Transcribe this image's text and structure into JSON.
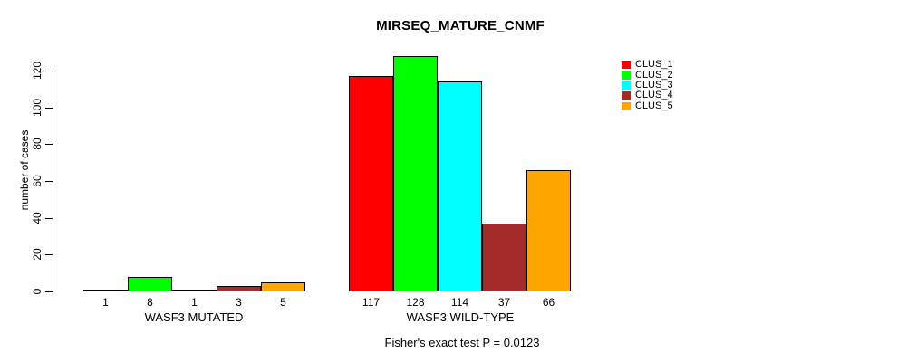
{
  "chart_data": {
    "type": "bar",
    "title": "MIRSEQ_MATURE_CNMF",
    "ylabel": "number of cases",
    "xlabel": "",
    "ylim": [
      0,
      128
    ],
    "yticks": [
      0,
      20,
      40,
      60,
      80,
      100,
      120
    ],
    "grid": false,
    "legend_position": "right",
    "bar_value_labels": true,
    "series": [
      {
        "name": "CLUS_1",
        "color": "#FF0000"
      },
      {
        "name": "CLUS_2",
        "color": "#00FF00"
      },
      {
        "name": "CLUS_3",
        "color": "#00FFFF"
      },
      {
        "name": "CLUS_4",
        "color": "#A52A2A"
      },
      {
        "name": "CLUS_5",
        "color": "#FFA500"
      }
    ],
    "groups": [
      {
        "label": "WASF3 MUTATED",
        "values": [
          1,
          8,
          1,
          3,
          5
        ]
      },
      {
        "label": "WASF3 WILD-TYPE",
        "values": [
          117,
          128,
          114,
          37,
          66
        ]
      }
    ],
    "annotation": "Fisher's exact test P = 0.0123"
  }
}
